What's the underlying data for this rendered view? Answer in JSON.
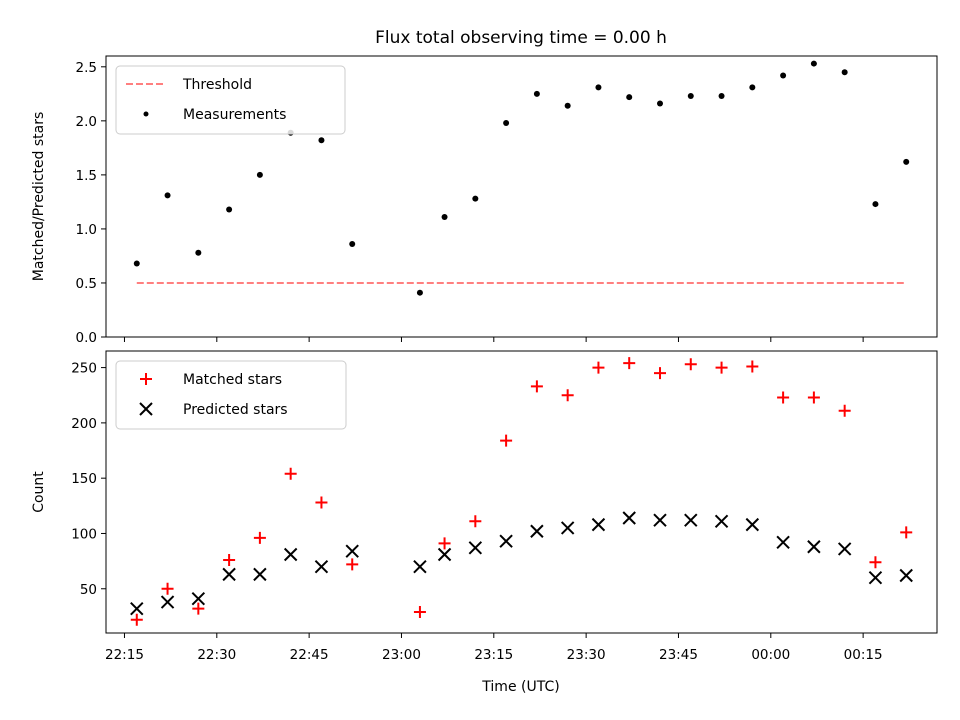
{
  "figure": {
    "title": "Flux total observing time = 0.00 h",
    "xlabel": "Time (UTC)"
  },
  "chart_data": [
    {
      "type": "scatter",
      "ylabel": "Matched/Predicted stars",
      "ylim": [
        0,
        2.6
      ],
      "yticks": [
        0.0,
        0.5,
        1.0,
        1.5,
        2.0,
        2.5
      ],
      "ytick_labels": [
        "0.0",
        "0.5",
        "1.0",
        "1.5",
        "2.0",
        "2.5"
      ],
      "legend_position": "upper left",
      "threshold": {
        "name": "Threshold",
        "value": 0.5,
        "x_start": "22:17",
        "x_end": "00:22",
        "color": "#ff7f7f",
        "style": "dashed"
      },
      "series": [
        {
          "name": "Measurements",
          "color": "#000000",
          "marker": "dot",
          "points": [
            [
              "22:17",
              0.68
            ],
            [
              "22:22",
              1.31
            ],
            [
              "22:27",
              0.78
            ],
            [
              "22:32",
              1.18
            ],
            [
              "22:37",
              1.5
            ],
            [
              "22:42",
              1.89
            ],
            [
              "22:47",
              1.82
            ],
            [
              "22:52",
              0.86
            ],
            [
              "23:03",
              0.41
            ],
            [
              "23:07",
              1.11
            ],
            [
              "23:12",
              1.28
            ],
            [
              "23:17",
              1.98
            ],
            [
              "23:22",
              2.25
            ],
            [
              "23:27",
              2.14
            ],
            [
              "23:32",
              2.31
            ],
            [
              "23:37",
              2.22
            ],
            [
              "23:42",
              2.16
            ],
            [
              "23:47",
              2.23
            ],
            [
              "23:52",
              2.23
            ],
            [
              "23:57",
              2.31
            ],
            [
              "00:02",
              2.42
            ],
            [
              "00:07",
              2.53
            ],
            [
              "00:12",
              2.45
            ],
            [
              "00:17",
              1.23
            ],
            [
              "00:22",
              1.62
            ]
          ]
        }
      ]
    },
    {
      "type": "scatter",
      "ylabel": "Count",
      "ylim": [
        10,
        265
      ],
      "yticks": [
        50,
        100,
        150,
        200,
        250
      ],
      "ytick_labels": [
        "50",
        "100",
        "150",
        "200",
        "250"
      ],
      "legend_position": "upper left",
      "series": [
        {
          "name": "Matched stars",
          "color": "#ff0000",
          "marker": "plus",
          "points": [
            [
              "22:17",
              22
            ],
            [
              "22:22",
              50
            ],
            [
              "22:27",
              32
            ],
            [
              "22:32",
              76
            ],
            [
              "22:37",
              96
            ],
            [
              "22:42",
              154
            ],
            [
              "22:47",
              128
            ],
            [
              "22:52",
              72
            ],
            [
              "23:03",
              29
            ],
            [
              "23:07",
              91
            ],
            [
              "23:12",
              111
            ],
            [
              "23:17",
              184
            ],
            [
              "23:22",
              233
            ],
            [
              "23:27",
              225
            ],
            [
              "23:32",
              250
            ],
            [
              "23:37",
              254
            ],
            [
              "23:42",
              245
            ],
            [
              "23:47",
              253
            ],
            [
              "23:52",
              250
            ],
            [
              "23:57",
              251
            ],
            [
              "00:02",
              223
            ],
            [
              "00:07",
              223
            ],
            [
              "00:12",
              211
            ],
            [
              "00:17",
              74
            ],
            [
              "00:22",
              101
            ]
          ]
        },
        {
          "name": "Predicted stars",
          "color": "#000000",
          "marker": "x",
          "points": [
            [
              "22:17",
              32
            ],
            [
              "22:22",
              38
            ],
            [
              "22:27",
              41
            ],
            [
              "22:32",
              63
            ],
            [
              "22:37",
              63
            ],
            [
              "22:42",
              81
            ],
            [
              "22:47",
              70
            ],
            [
              "22:52",
              84
            ],
            [
              "23:03",
              70
            ],
            [
              "23:07",
              81
            ],
            [
              "23:12",
              87
            ],
            [
              "23:17",
              93
            ],
            [
              "23:22",
              102
            ],
            [
              "23:27",
              105
            ],
            [
              "23:32",
              108
            ],
            [
              "23:37",
              114
            ],
            [
              "23:42",
              112
            ],
            [
              "23:47",
              112
            ],
            [
              "23:52",
              111
            ],
            [
              "23:57",
              108
            ],
            [
              "00:02",
              92
            ],
            [
              "00:07",
              88
            ],
            [
              "00:12",
              86
            ],
            [
              "00:17",
              60
            ],
            [
              "00:22",
              62
            ]
          ]
        }
      ]
    }
  ],
  "x_axis": {
    "range": [
      "22:12",
      "00:27"
    ],
    "ticks": [
      "22:15",
      "22:30",
      "22:45",
      "23:00",
      "23:15",
      "23:30",
      "23:45",
      "00:00",
      "00:15"
    ]
  }
}
